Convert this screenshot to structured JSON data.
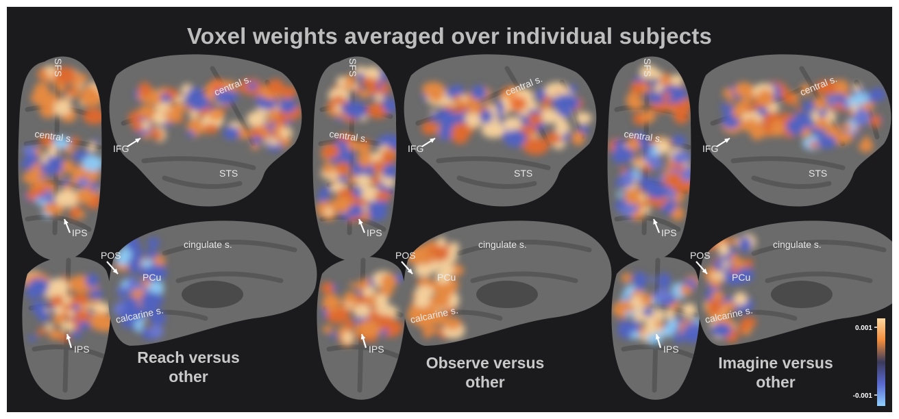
{
  "title": "Voxel weights averaged over individual subjects",
  "conditions": [
    {
      "line1": "Reach versus",
      "line2": "other",
      "labels": {
        "sfs": "SFS",
        "central_dorsal": "central s.",
        "central_lateral": "central s.",
        "ifg": "IFG",
        "sts": "STS",
        "ips_dorsal": "IPS",
        "cingulate": "cingulate s.",
        "pos": "POS",
        "pcu": "PCu",
        "calcarine": "calcarine s.",
        "ips_posterior": "IPS"
      }
    },
    {
      "line1": "Observe versus",
      "line2": "other",
      "labels": {
        "sfs": "SFS",
        "central_dorsal": "central s.",
        "central_lateral": "central s.",
        "ifg": "IFG",
        "sts": "STS",
        "ips_dorsal": "IPS",
        "cingulate": "cingulate s.",
        "pos": "POS",
        "pcu": "PCu",
        "calcarine": "calcarine s.",
        "ips_posterior": "IPS"
      }
    },
    {
      "line1": "Imagine versus",
      "line2": "other",
      "labels": {
        "sfs": "SFS",
        "central_dorsal": "central s.",
        "central_lateral": "central s.",
        "ifg": "IFG",
        "sts": "STS",
        "ips_dorsal": "IPS",
        "cingulate": "cingulate s.",
        "pos": "POS",
        "pcu": "PCu",
        "calcarine": "calcarine s.",
        "ips_posterior": "IPS"
      }
    }
  ],
  "colorbar": {
    "max_label": "0.001",
    "min_label": "-0.001",
    "colors": [
      "#ffd8a0",
      "#f08c3c",
      "#3a3a5c",
      "#5a6ad0",
      "#8fd0ff"
    ]
  },
  "colors": {
    "background": "#1b1a1c",
    "brain": "#6b6b6b",
    "sulcus": "#555555",
    "positive": "#f08c3c",
    "positive_high": "#ffd8a0",
    "negative": "#4f62c8",
    "negative_high": "#8fd0ff"
  }
}
